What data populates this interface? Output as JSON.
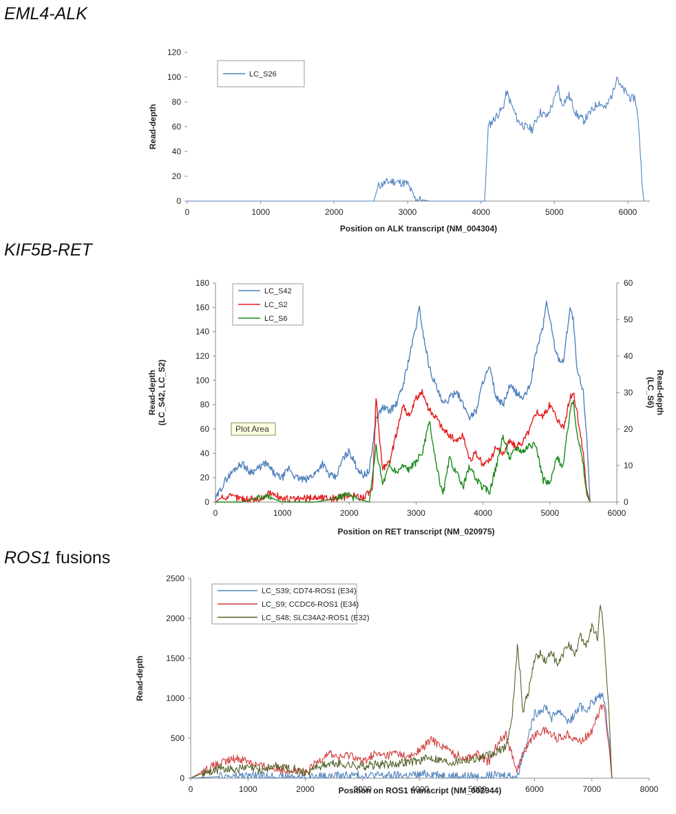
{
  "sections": [
    {
      "title_italic": "EML4-ALK",
      "title_rest": ""
    },
    {
      "title_italic": "KIF5B-RET",
      "title_rest": ""
    },
    {
      "title_italic": "ROS1",
      "title_rest": " fusions"
    }
  ],
  "tooltip": "Plot Area",
  "chart_data": [
    {
      "type": "line",
      "xlabel": "Position  on ALK transcript (NM_004304)",
      "ylabel": "Read-depth",
      "xlim": [
        0,
        6300
      ],
      "ylim": [
        0,
        120
      ],
      "xticks": [
        0,
        1000,
        2000,
        3000,
        4000,
        5000,
        6000
      ],
      "yticks": [
        0,
        20,
        40,
        60,
        80,
        100,
        120
      ],
      "legend": "top-left box",
      "series": [
        {
          "name": "LC_S26",
          "color": "#4f81bd",
          "x": [
            0,
            2540,
            2600,
            2700,
            2800,
            2900,
            3000,
            3050,
            3100,
            3200,
            3300,
            4050,
            4100,
            4200,
            4300,
            4350,
            4400,
            4500,
            4600,
            4700,
            4800,
            4900,
            5000,
            5050,
            5100,
            5200,
            5300,
            5400,
            5500,
            5600,
            5700,
            5800,
            5850,
            5900,
            6000,
            6050,
            6100,
            6150,
            6200,
            6220
          ],
          "y": [
            0,
            0,
            12,
            15,
            16,
            15,
            14,
            8,
            2,
            1,
            0,
            0,
            60,
            68,
            75,
            88,
            80,
            65,
            60,
            58,
            72,
            68,
            82,
            92,
            78,
            85,
            70,
            65,
            72,
            80,
            75,
            88,
            102,
            92,
            86,
            82,
            84,
            60,
            10,
            0
          ]
        }
      ]
    },
    {
      "type": "line",
      "xlabel": "Position on RET transcript (NM_020975)",
      "ylabel": "Read-depth\n(LC_S42, LC_S2)",
      "y2label": "Read-depth\n(LC_S6)",
      "xlim": [
        0,
        6000
      ],
      "ylim": [
        0,
        180
      ],
      "y2lim": [
        0,
        60
      ],
      "xticks": [
        0,
        1000,
        2000,
        3000,
        4000,
        5000,
        6000
      ],
      "yticks": [
        0,
        20,
        40,
        60,
        80,
        100,
        120,
        140,
        160,
        180
      ],
      "y2ticks": [
        0,
        10,
        20,
        30,
        40,
        50,
        60
      ],
      "legend": "top-left box",
      "series": [
        {
          "name": "LC_S42",
          "color": "#4f81bd",
          "axis": "left",
          "x": [
            0,
            150,
            300,
            400,
            500,
            600,
            750,
            900,
            1000,
            1100,
            1200,
            1350,
            1500,
            1600,
            1700,
            1800,
            1900,
            2000,
            2100,
            2200,
            2300,
            2400,
            2500,
            2600,
            2700,
            2800,
            2900,
            3000,
            3050,
            3100,
            3200,
            3300,
            3400,
            3500,
            3600,
            3700,
            3800,
            3900,
            4000,
            4100,
            4200,
            4300,
            4400,
            4500,
            4600,
            4700,
            4800,
            4900,
            4950,
            5000,
            5100,
            5200,
            5300,
            5350,
            5400,
            5500,
            5550,
            5600
          ],
          "y": [
            2,
            18,
            28,
            32,
            25,
            26,
            32,
            22,
            20,
            28,
            20,
            18,
            24,
            32,
            22,
            20,
            35,
            42,
            30,
            22,
            25,
            68,
            78,
            75,
            80,
            95,
            120,
            145,
            160,
            140,
            110,
            95,
            80,
            85,
            92,
            80,
            70,
            75,
            100,
            110,
            85,
            80,
            95,
            90,
            85,
            95,
            125,
            145,
            165,
            150,
            120,
            115,
            160,
            150,
            110,
            90,
            55,
            0
          ]
        },
        {
          "name": "LC_S2",
          "color": "#e21b1b",
          "axis": "left",
          "x": [
            0,
            100,
            300,
            500,
            700,
            800,
            1000,
            1200,
            1500,
            1800,
            2000,
            2200,
            2350,
            2400,
            2450,
            2500,
            2600,
            2700,
            2800,
            2900,
            3000,
            3100,
            3200,
            3300,
            3400,
            3500,
            3600,
            3700,
            3800,
            3900,
            4000,
            4100,
            4200,
            4300,
            4400,
            4500,
            4600,
            4700,
            4800,
            4900,
            5000,
            5100,
            5200,
            5300,
            5350,
            5400,
            5500,
            5550,
            5600
          ],
          "y": [
            0,
            4,
            4,
            2,
            3,
            8,
            3,
            2,
            4,
            3,
            5,
            4,
            10,
            85,
            55,
            28,
            32,
            55,
            80,
            70,
            85,
            90,
            75,
            70,
            60,
            55,
            50,
            55,
            35,
            40,
            30,
            35,
            45,
            40,
            50,
            45,
            50,
            60,
            75,
            70,
            80,
            70,
            60,
            85,
            90,
            75,
            40,
            10,
            0
          ]
        },
        {
          "name": "LC_S6",
          "color": "#1a8a1a",
          "axis": "right",
          "x": [
            0,
            400,
            600,
            750,
            850,
            1000,
            1500,
            1800,
            1950,
            2100,
            2300,
            2400,
            2450,
            2500,
            2600,
            2700,
            2800,
            2900,
            3000,
            3100,
            3200,
            3300,
            3400,
            3500,
            3600,
            3700,
            3800,
            3900,
            4000,
            4100,
            4200,
            4300,
            4400,
            4500,
            4600,
            4700,
            4800,
            4900,
            5000,
            5100,
            5200,
            5300,
            5350,
            5400,
            5500,
            5550,
            5600
          ],
          "y": [
            0,
            0,
            1,
            2,
            1,
            0,
            0,
            1,
            2,
            1,
            0,
            15,
            10,
            5,
            10,
            8,
            10,
            9,
            11,
            14,
            22,
            10,
            2,
            12,
            8,
            4,
            10,
            6,
            4,
            3,
            10,
            18,
            12,
            15,
            14,
            16,
            15,
            6,
            5,
            12,
            10,
            25,
            28,
            20,
            10,
            2,
            0
          ]
        }
      ]
    },
    {
      "type": "line",
      "xlabel": "Position on ROS1 transcript (NM_002944)",
      "ylabel": "Read-depth",
      "xlim": [
        0,
        8000
      ],
      "ylim": [
        0,
        2500
      ],
      "xticks": [
        0,
        1000,
        2000,
        3000,
        4000,
        5000,
        6000,
        7000,
        8000
      ],
      "yticks": [
        0,
        500,
        1000,
        1500,
        2000,
        2500
      ],
      "legend": "top-left box",
      "series": [
        {
          "name": "LC_S39; CD74-ROS1 (E34)",
          "color": "#4f81bd",
          "x": [
            0,
            500,
            1000,
            1500,
            2000,
            2500,
            3000,
            3500,
            4000,
            4200,
            4500,
            5000,
            5500,
            5700,
            5800,
            5900,
            6000,
            6100,
            6200,
            6300,
            6400,
            6500,
            6600,
            6700,
            6800,
            6900,
            7000,
            7100,
            7200,
            7300,
            7350
          ],
          "y": [
            0,
            20,
            30,
            20,
            10,
            25,
            40,
            30,
            40,
            60,
            30,
            20,
            40,
            20,
            300,
            550,
            800,
            850,
            900,
            750,
            850,
            800,
            700,
            800,
            900,
            850,
            950,
            1000,
            1050,
            500,
            0
          ]
        },
        {
          "name": "LC_S9; CCDC6-ROS1 (E34)",
          "color": "#d03c3c",
          "x": [
            0,
            200,
            400,
            600,
            800,
            1000,
            1200,
            1500,
            1800,
            2000,
            2200,
            2400,
            2600,
            2800,
            3000,
            3200,
            3400,
            3600,
            3800,
            4000,
            4200,
            4400,
            4600,
            4800,
            5000,
            5200,
            5400,
            5500,
            5600,
            5700,
            5800,
            5900,
            6000,
            6200,
            6400,
            6600,
            6800,
            7000,
            7200,
            7300,
            7350
          ],
          "y": [
            0,
            80,
            150,
            200,
            250,
            220,
            150,
            120,
            100,
            50,
            200,
            320,
            250,
            300,
            200,
            300,
            280,
            320,
            250,
            350,
            480,
            400,
            300,
            250,
            300,
            200,
            500,
            550,
            300,
            100,
            300,
            450,
            550,
            600,
            500,
            550,
            450,
            600,
            950,
            400,
            0
          ]
        },
        {
          "name": "LC_S48; SLC34A2-ROS1 (E32)",
          "color": "#4f6228",
          "x": [
            0,
            200,
            400,
            600,
            800,
            1000,
            1200,
            1500,
            1800,
            2000,
            2200,
            2500,
            3000,
            3500,
            4000,
            4200,
            4500,
            5000,
            5300,
            5500,
            5600,
            5700,
            5750,
            5800,
            5850,
            5900,
            6000,
            6100,
            6200,
            6300,
            6400,
            6500,
            6600,
            6700,
            6800,
            6900,
            7000,
            7100,
            7150,
            7200,
            7250,
            7300,
            7350
          ],
          "y": [
            0,
            60,
            100,
            120,
            110,
            130,
            100,
            150,
            120,
            60,
            150,
            180,
            150,
            180,
            220,
            260,
            200,
            250,
            300,
            400,
            700,
            1650,
            1300,
            800,
            1000,
            1100,
            1500,
            1550,
            1450,
            1600,
            1400,
            1550,
            1700,
            1500,
            1800,
            1650,
            1900,
            1750,
            2200,
            1900,
            1300,
            800,
            0
          ]
        }
      ]
    }
  ]
}
